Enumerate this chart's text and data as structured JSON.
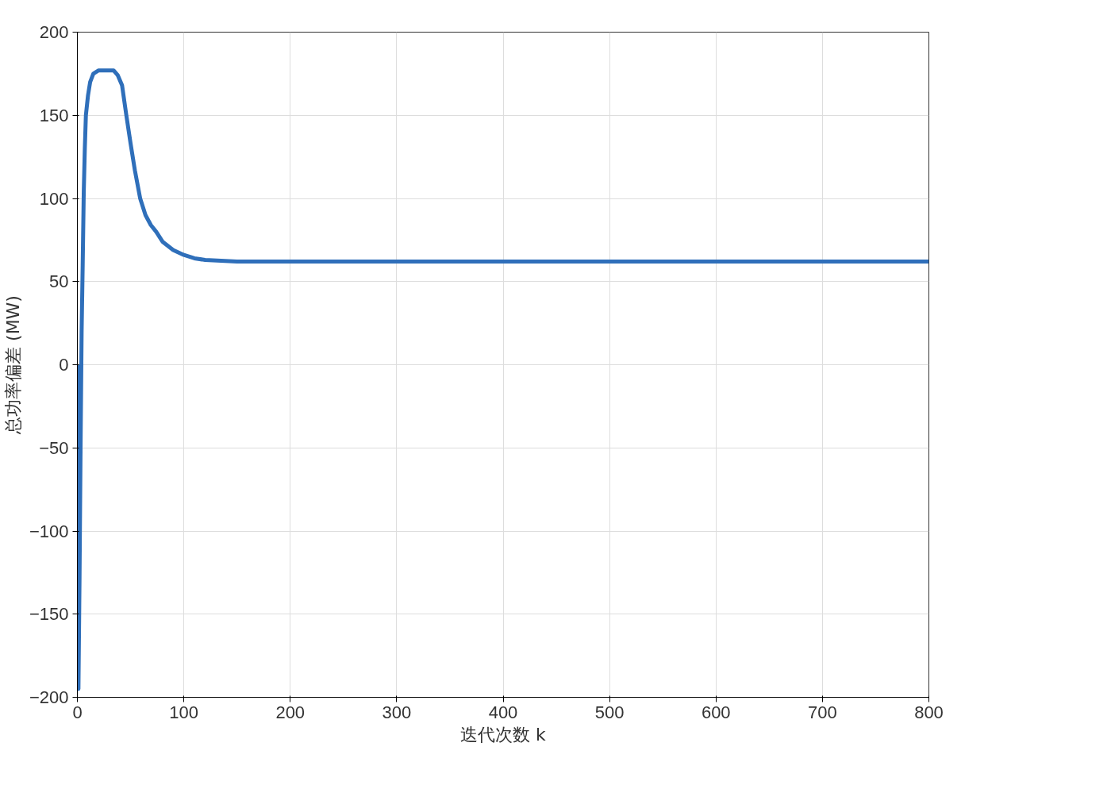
{
  "chart_data": {
    "type": "line",
    "xlabel": "迭代次数 k",
    "ylabel": "总功率偏差 (MW)",
    "x": [
      0,
      1,
      2,
      3,
      4,
      5,
      6,
      7,
      8,
      10,
      12,
      15,
      20,
      27,
      34,
      38,
      42,
      46,
      50,
      54,
      59,
      64,
      69,
      74,
      80,
      90,
      100,
      110,
      120,
      135,
      150,
      200,
      300,
      400,
      500,
      600,
      700,
      800
    ],
    "series": [
      {
        "color": "#2f6fba",
        "values": [
          0,
          -195,
          -130,
          -50,
          20,
          60,
          104,
          130,
          150,
          162,
          170,
          175,
          177,
          177,
          177,
          174,
          168,
          150,
          133,
          117,
          100,
          90,
          84,
          80,
          74,
          69,
          66,
          64,
          63,
          62.5,
          62,
          62,
          62,
          62,
          62,
          62,
          62,
          62
        ]
      }
    ],
    "xlim": [
      0,
      800
    ],
    "ylim": [
      -200,
      200
    ],
    "xticks": [
      0,
      100,
      200,
      300,
      400,
      500,
      600,
      700,
      800
    ],
    "yticks": [
      -200,
      -150,
      -100,
      -50,
      0,
      50,
      100,
      150,
      200
    ],
    "grid": true,
    "marker": "none",
    "line_style": "solid"
  }
}
